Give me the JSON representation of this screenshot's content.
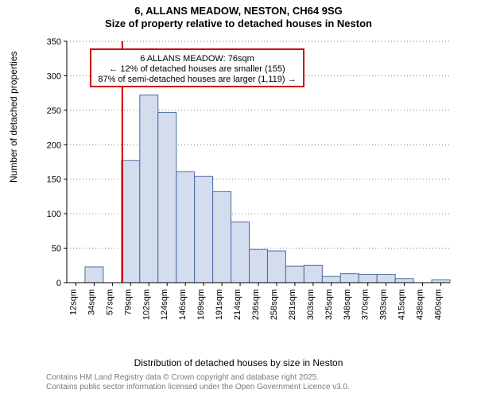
{
  "title": {
    "line1": "6, ALLANS MEADOW, NESTON, CH64 9SG",
    "line2": "Size of property relative to detached houses in Neston"
  },
  "chart": {
    "type": "histogram",
    "ylabel": "Number of detached properties",
    "xlabel": "Distribution of detached houses by size in Neston",
    "ylim": [
      0,
      350
    ],
    "ytick_step": 50,
    "yticks": [
      0,
      50,
      100,
      150,
      200,
      250,
      300,
      350
    ],
    "xticks": [
      "12sqm",
      "34sqm",
      "57sqm",
      "79sqm",
      "102sqm",
      "124sqm",
      "146sqm",
      "169sqm",
      "191sqm",
      "214sqm",
      "236sqm",
      "258sqm",
      "281sqm",
      "303sqm",
      "325sqm",
      "348sqm",
      "370sqm",
      "393sqm",
      "415sqm",
      "438sqm",
      "460sqm"
    ],
    "values": [
      0,
      23,
      0,
      177,
      272,
      247,
      161,
      154,
      132,
      88,
      48,
      46,
      24,
      25,
      9,
      13,
      12,
      12,
      6,
      0,
      4
    ],
    "bar_fill": "#d4ddee",
    "bar_stroke": "#4a6aa0",
    "background": "#ffffff",
    "grid_color": "#000000",
    "marker": {
      "index": 3,
      "color": "#cc0000"
    },
    "annotation": {
      "border_color": "#cc0000",
      "lines": [
        "6 ALLANS MEADOW: 76sqm",
        "← 12% of detached houses are smaller (155)",
        "87% of semi-detached houses are larger (1,119) →"
      ]
    }
  },
  "footer": {
    "line1": "Contains HM Land Registry data © Crown copyright and database right 2025.",
    "line2": "Contains public sector information licensed under the Open Government Licence v3.0."
  }
}
